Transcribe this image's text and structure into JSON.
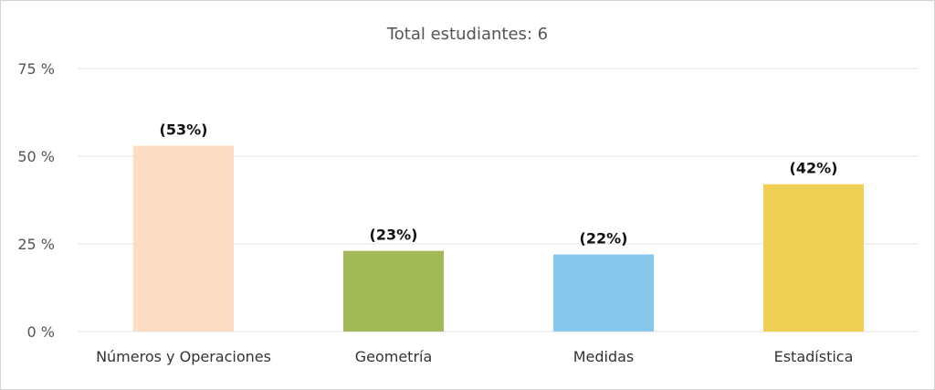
{
  "chart_data": {
    "type": "bar",
    "title": "Total estudiantes: 6",
    "categories": [
      "Números y Operaciones",
      "Geometría",
      "Medidas",
      "Estadística"
    ],
    "values": [
      53,
      23,
      22,
      42
    ],
    "data_labels": [
      "(53%)",
      "(23%)",
      "(22%)",
      "(42%)"
    ],
    "colors": [
      "#fdddc3",
      "#a3b958",
      "#88c8ec",
      "#f0d054"
    ],
    "ylim": [
      0,
      75
    ],
    "yticks": [
      0,
      25,
      50,
      75
    ],
    "ytick_labels": [
      "0 %",
      "25 %",
      "50 %",
      "75 %"
    ],
    "grid": true,
    "legend": "none"
  }
}
